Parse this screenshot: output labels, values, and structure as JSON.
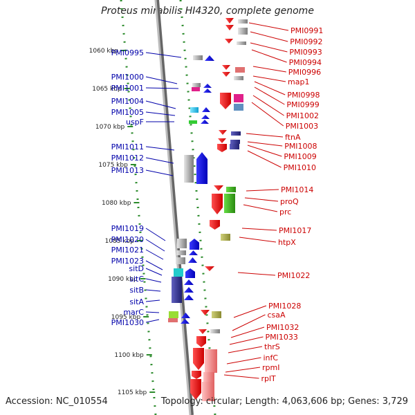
{
  "title": "Proteus mirabilis HI4320, complete genome",
  "footer": {
    "accession": "Accession: NC_010554",
    "summary": "Topology: circular; Length: 4,063,606 bp; Genes: 3,729"
  },
  "colors": {
    "left_label": "#0000aa",
    "right_label": "#cc0000",
    "tick": "#2a8a2a",
    "backbone": "#999999"
  },
  "kbp_ticks": [
    "1060 kbp",
    "1065 kbp",
    "1070 kbp",
    "1075 kbp",
    "1080 kbp",
    "1085 kbp",
    "1090 kbp",
    "1095 kbp",
    "1100 kbp",
    "1105 kbp"
  ],
  "left_genes": [
    "PMI0995",
    "PMI1000",
    "PMI1001",
    "PMI1004",
    "PMI1005",
    "uspF",
    "PMI1011",
    "PMI1012",
    "PMI1013",
    "PMI1019",
    "PMI1020",
    "PMI1021",
    "PMI1023",
    "sitD",
    "sitC",
    "sitB",
    "sitA",
    "marC",
    "PMI1030"
  ],
  "right_genes": [
    "PMI0991",
    "PMI0992",
    "PMI0993",
    "PMI0994",
    "PMI0996",
    "map1",
    "PMI0998",
    "PMI0999",
    "PMI1002",
    "PMI1003",
    "ftnA",
    "PMI1008",
    "PMI1009",
    "PMI1010",
    "PMI1014",
    "proQ",
    "prc",
    "PMI1017",
    "htpX",
    "PMI1022",
    "PMI1028",
    "csaA",
    "PMI1032",
    "PMI1033",
    "thrS",
    "infC",
    "rpmI",
    "rplT"
  ]
}
